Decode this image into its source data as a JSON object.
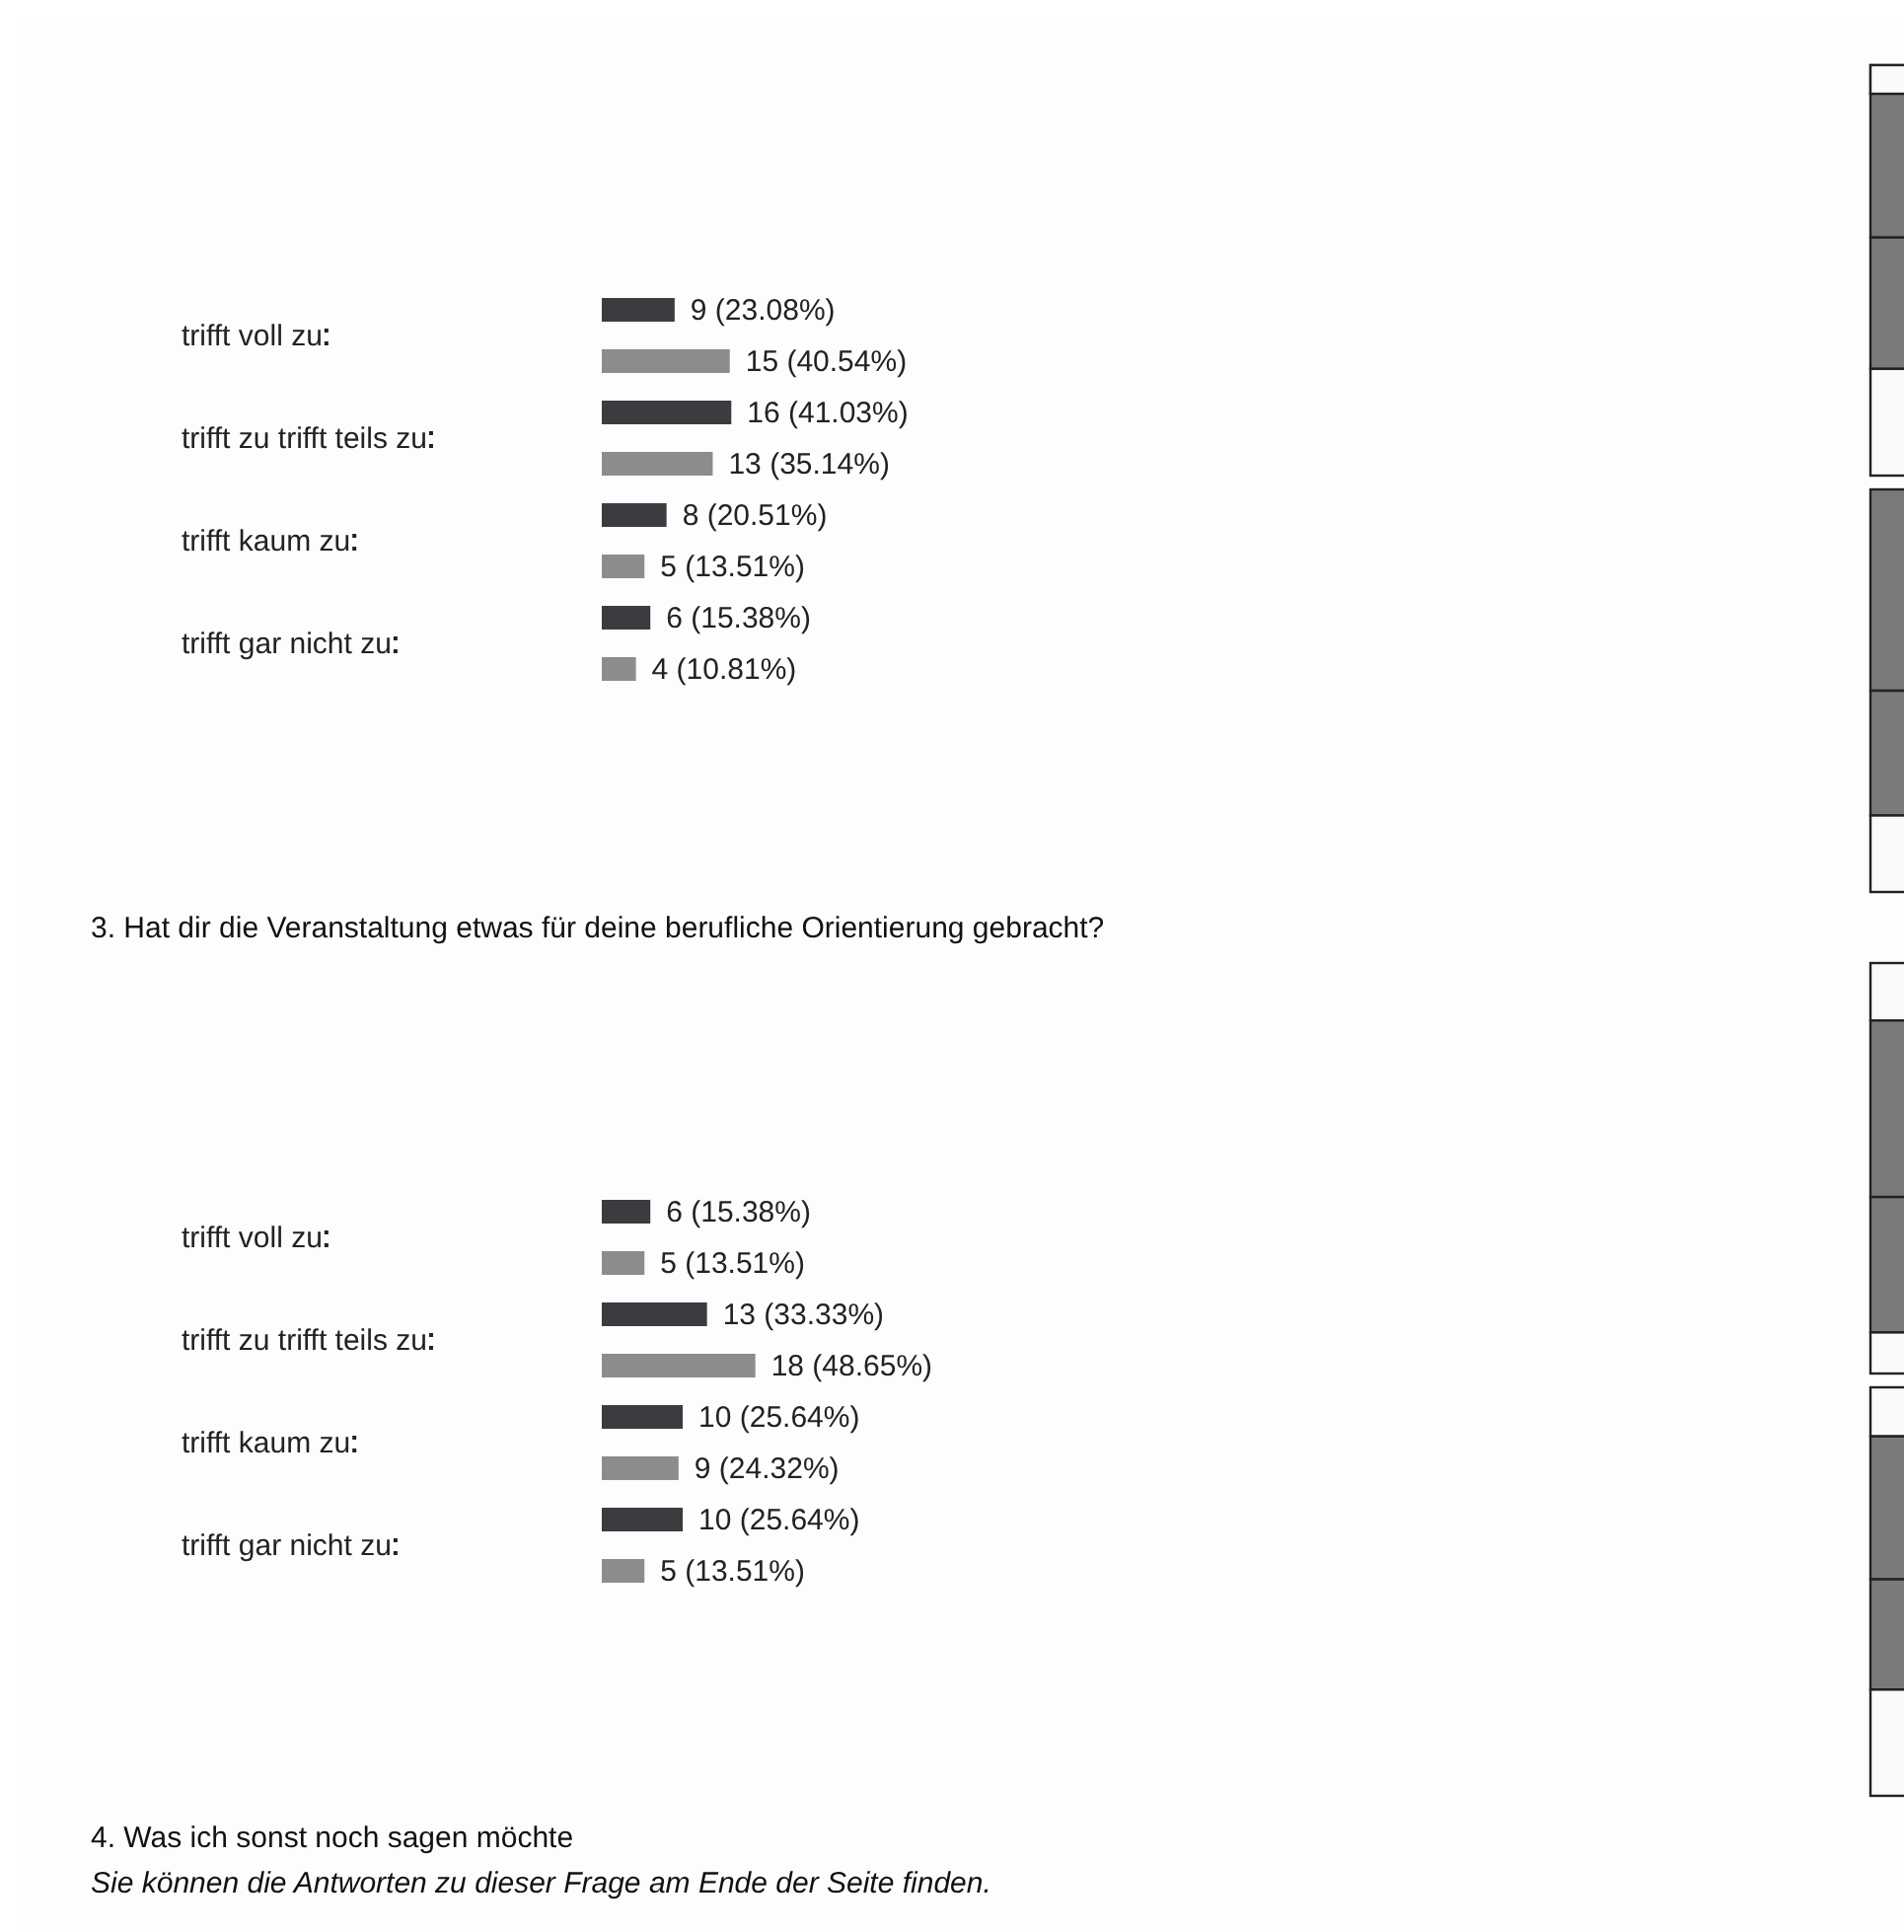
{
  "chart_data": [
    {
      "type": "bar",
      "orientation": "horizontal",
      "categories": [
        "trifft voll zu",
        "trifft zu trifft teils zu",
        "trifft kaum zu",
        "trifft gar nicht zu"
      ],
      "series": [
        {
          "color": "#3c3c40",
          "values": [
            23.08,
            41.03,
            20.51,
            15.38
          ],
          "value_labels": [
            "9 (23.08%)",
            "16 (41.03%)",
            "8 (20.51%)",
            "6 (15.38%)"
          ]
        },
        {
          "color": "#8c8c8c",
          "values": [
            40.54,
            35.14,
            13.51,
            10.81
          ],
          "value_labels": [
            "15 (40.54%)",
            "13 (35.14%)",
            "5 (13.51%)",
            "4 (10.81%)"
          ]
        }
      ]
    },
    {
      "type": "bar",
      "orientation": "horizontal",
      "title": "3. Hat dir die Veranstaltung etwas für deine berufliche Orientierung gebracht?",
      "categories": [
        "trifft voll zu",
        "trifft zu trifft teils zu",
        "trifft kaum zu",
        "trifft gar nicht zu"
      ],
      "series": [
        {
          "color": "#3c3c40",
          "values": [
            15.38,
            33.33,
            25.64,
            25.64
          ],
          "value_labels": [
            "6 (15.38%)",
            "13 (33.33%)",
            "10 (25.64%)",
            "10 (25.64%)"
          ]
        },
        {
          "color": "#8c8c8c",
          "values": [
            13.51,
            48.65,
            24.32,
            13.51
          ],
          "value_labels": [
            "5 (13.51%)",
            "18 (48.65%)",
            "9 (24.32%)",
            "5 (13.51%)"
          ]
        }
      ],
      "annotations": [
        "4. Was ich sonst noch sagen möchte",
        "Sie können die Antworten zu dieser Frage am Ende der Seite finden."
      ]
    }
  ]
}
